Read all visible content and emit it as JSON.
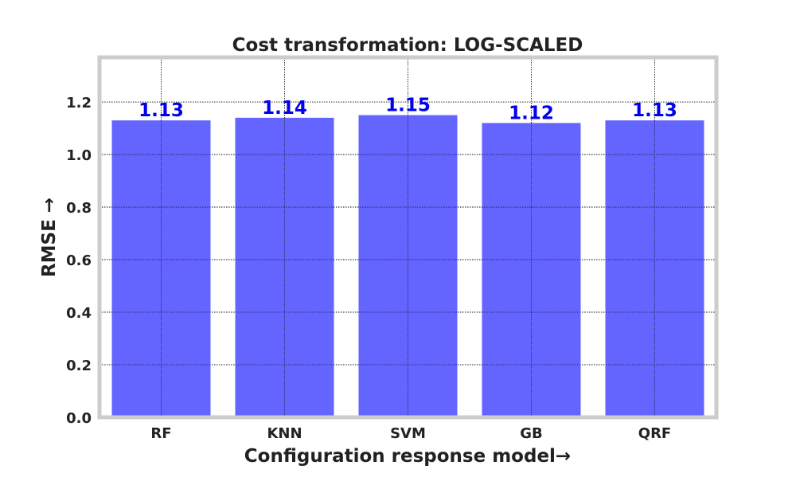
{
  "chart_data": {
    "type": "bar",
    "title": "Cost transformation: LOG-SCALED",
    "xlabel": "Configuration response model→",
    "ylabel": "RMSE →",
    "categories": [
      "RF",
      "KNN",
      "SVM",
      "GB",
      "QRF"
    ],
    "values": [
      1.13,
      1.14,
      1.15,
      1.12,
      1.13
    ],
    "value_labels": [
      "1.13",
      "1.14",
      "1.15",
      "1.12",
      "1.13"
    ],
    "ylim": [
      0,
      1.37
    ],
    "yticks": [
      0.0,
      0.2,
      0.4,
      0.6,
      0.8,
      1.0,
      1.2
    ],
    "ytick_labels": [
      "0.0",
      "0.2",
      "0.4",
      "0.6",
      "0.8",
      "1.0",
      "1.2"
    ],
    "grid": true,
    "legend": "none",
    "colors": {
      "bar": "#6464ff",
      "value_label": "#0000ee",
      "frame": "#cccccc",
      "grid": "#000000",
      "text": "#222222"
    }
  }
}
